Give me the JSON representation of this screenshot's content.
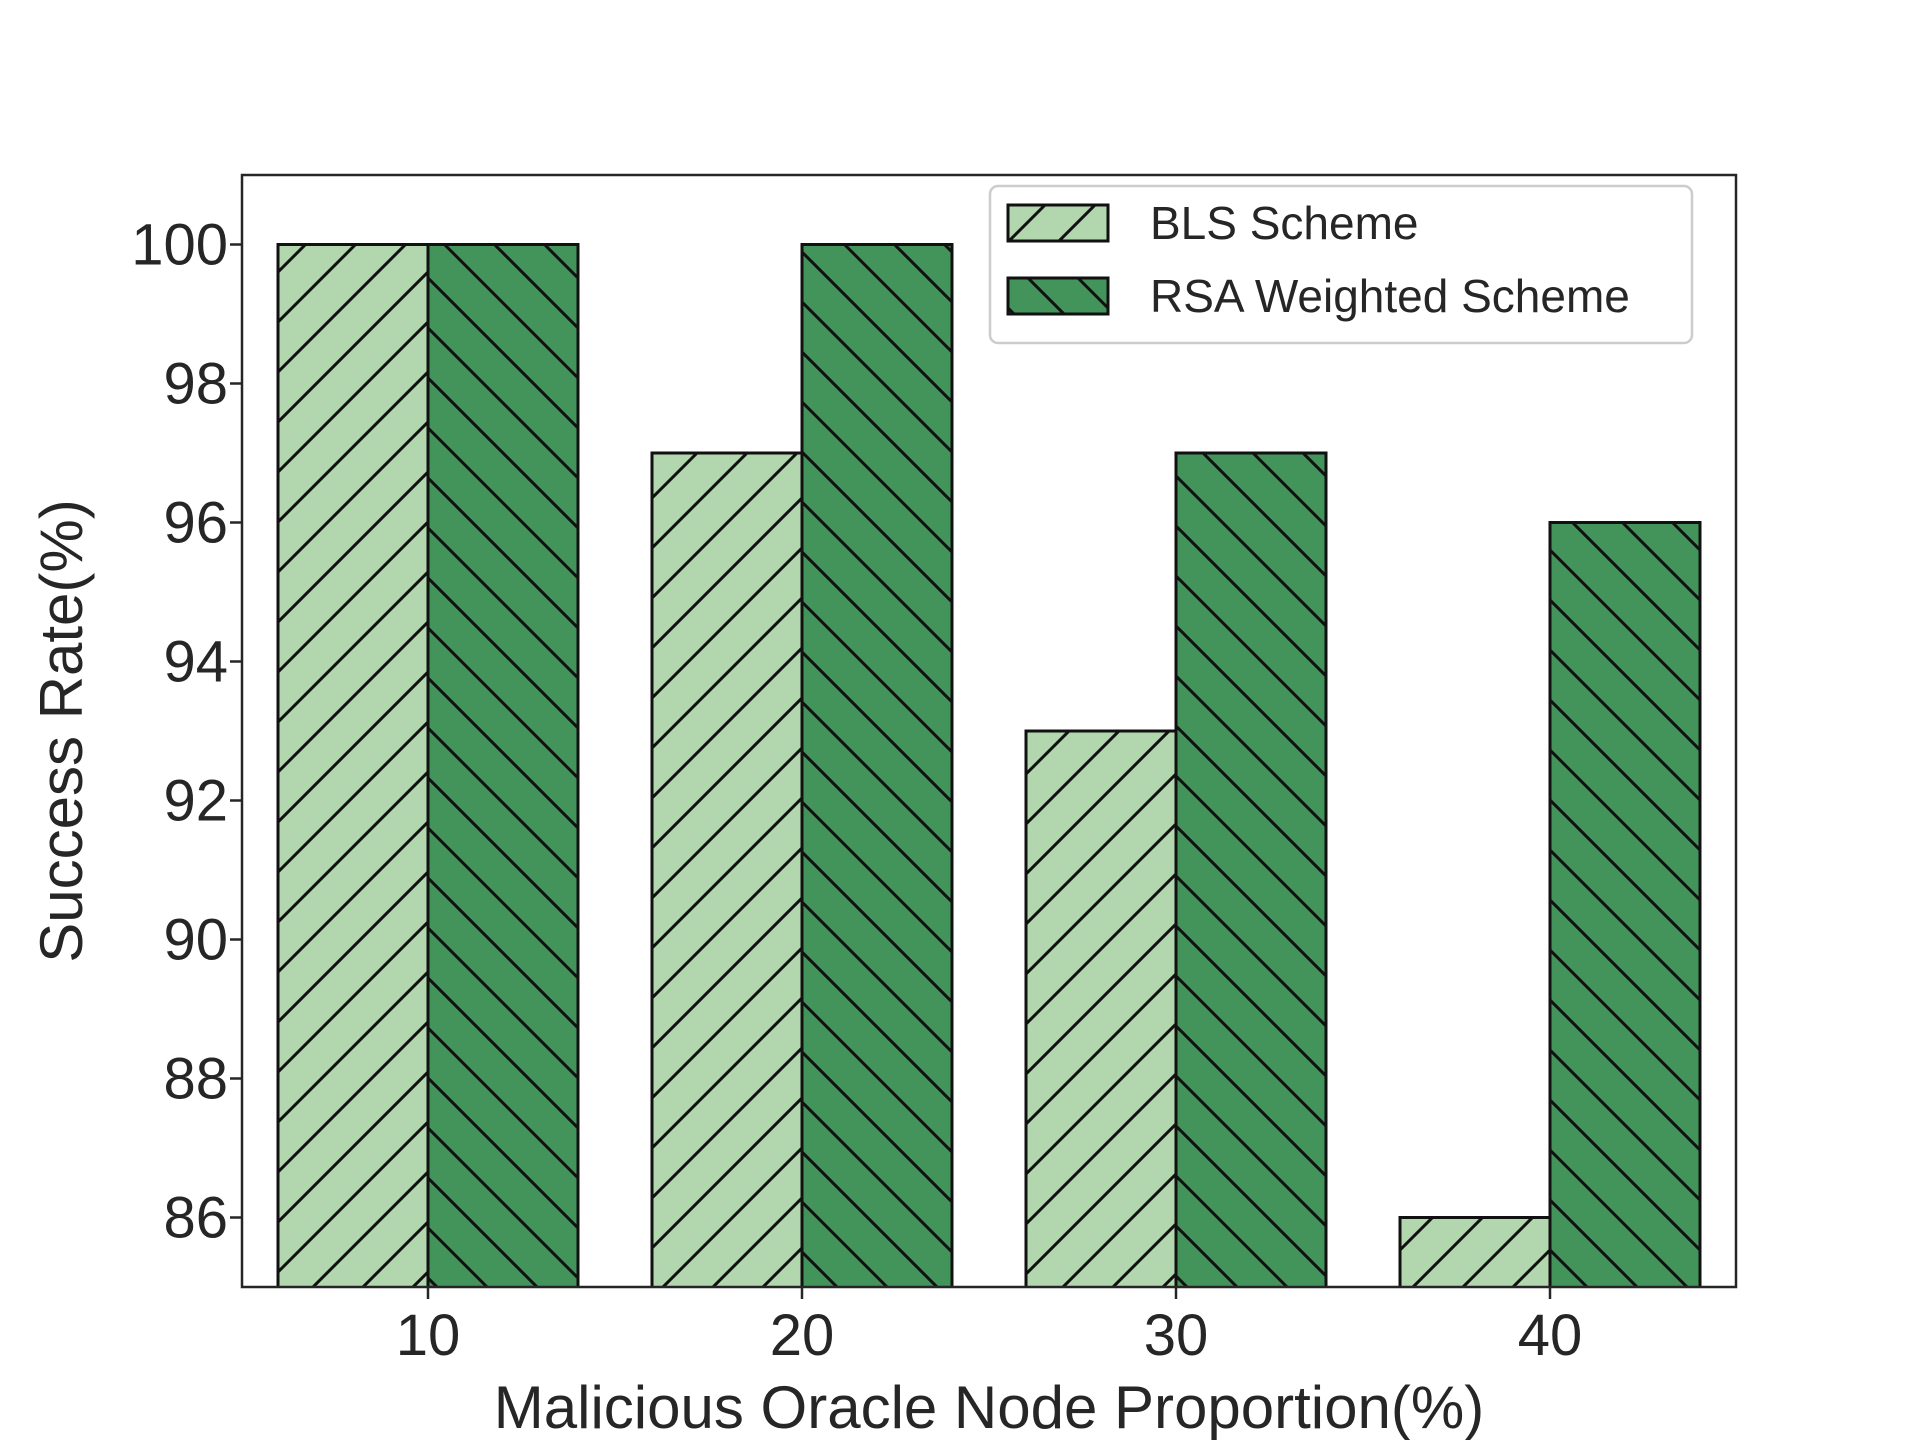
{
  "chart_data": {
    "type": "bar",
    "title": "",
    "xlabel": "Malicious Oracle Node Proportion(%)",
    "ylabel": "Success Rate(%)",
    "categories": [
      "10",
      "20",
      "30",
      "40"
    ],
    "series": [
      {
        "name": "BLS Scheme",
        "values": [
          100,
          97,
          93,
          86
        ],
        "color": "#b2d6ae",
        "hatch": "forward-diagonal"
      },
      {
        "name": "RSA Weighted Scheme",
        "values": [
          100,
          100,
          97,
          96
        ],
        "color": "#43945b",
        "hatch": "back-diagonal"
      }
    ],
    "ylim": [
      85,
      101
    ],
    "yticks": [
      "86",
      "88",
      "90",
      "92",
      "94",
      "96",
      "98",
      "100"
    ],
    "grid": false,
    "legend_position": "top-right"
  }
}
